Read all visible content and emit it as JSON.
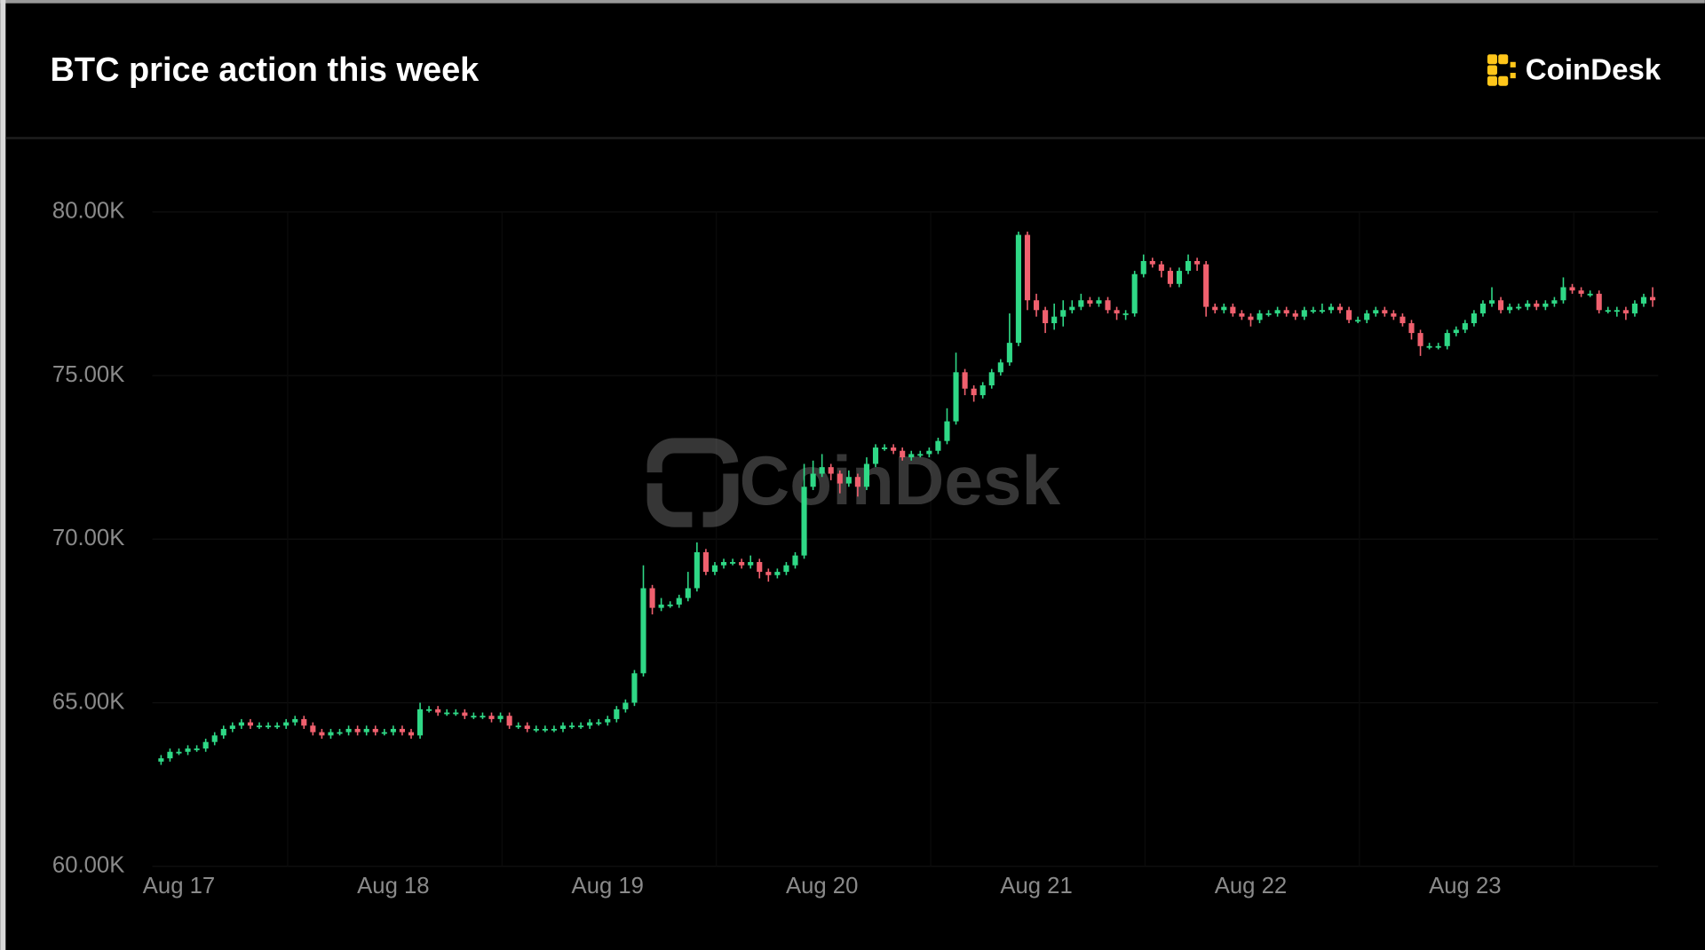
{
  "header": {
    "title": "BTC price action this week",
    "brand": "CoinDesk"
  },
  "chart_data": {
    "type": "candlestick",
    "watermark": "CoinDesk",
    "up_color": "#2fd886",
    "down_color": "#f0606e",
    "grid": true,
    "ylim": [
      60000,
      80000
    ],
    "yticks": [
      {
        "value": 60000,
        "label": "60.00K"
      },
      {
        "value": 65000,
        "label": "65.00K"
      },
      {
        "value": 70000,
        "label": "70.00K"
      },
      {
        "value": 75000,
        "label": "75.00K"
      },
      {
        "value": 80000,
        "label": "80.00K"
      }
    ],
    "categories": [
      null,
      null,
      "Aug 17",
      null,
      null,
      null,
      null,
      null,
      null,
      null,
      null,
      null,
      null,
      null,
      null,
      null,
      null,
      null,
      null,
      null,
      null,
      null,
      null,
      null,
      null,
      null,
      "Aug 18",
      null,
      null,
      null,
      null,
      null,
      null,
      null,
      null,
      null,
      null,
      null,
      null,
      null,
      null,
      null,
      null,
      null,
      null,
      null,
      null,
      null,
      null,
      null,
      "Aug 19",
      null,
      null,
      null,
      null,
      null,
      null,
      null,
      null,
      null,
      null,
      null,
      null,
      null,
      null,
      null,
      null,
      null,
      null,
      null,
      null,
      null,
      null,
      null,
      "Aug 20",
      null,
      null,
      null,
      null,
      null,
      null,
      null,
      null,
      null,
      null,
      null,
      null,
      null,
      null,
      null,
      null,
      null,
      null,
      null,
      null,
      null,
      null,
      null,
      "Aug 21",
      null,
      null,
      null,
      null,
      null,
      null,
      null,
      null,
      null,
      null,
      null,
      null,
      null,
      null,
      null,
      null,
      null,
      null,
      null,
      null,
      null,
      null,
      null,
      "Aug 22",
      null,
      null,
      null,
      null,
      null,
      null,
      null,
      null,
      null,
      null,
      null,
      null,
      null,
      null,
      null,
      null,
      null,
      null,
      null,
      null,
      null,
      null,
      null,
      "Aug 23",
      null,
      null,
      null,
      null,
      null,
      null,
      null,
      null,
      null,
      null,
      null,
      null,
      null,
      null,
      null,
      null,
      null,
      null,
      null,
      null,
      null
    ],
    "open": [
      63200,
      63300,
      63500,
      63500,
      63600,
      63600,
      63800,
      64000,
      64200,
      64300,
      64400,
      64300,
      64300,
      64300,
      64300,
      64400,
      64500,
      64300,
      64100,
      64000,
      64100,
      64100,
      64200,
      64100,
      64200,
      64100,
      64100,
      64200,
      64100,
      64000,
      64800,
      64800,
      64700,
      64700,
      64700,
      64600,
      64600,
      64600,
      64500,
      64600,
      64300,
      64300,
      64200,
      64200,
      64200,
      64200,
      64300,
      64300,
      64300,
      64400,
      64400,
      64500,
      64800,
      65000,
      65900,
      68500,
      67900,
      68000,
      68000,
      68200,
      68500,
      69600,
      69000,
      69200,
      69300,
      69300,
      69200,
      69300,
      69000,
      68900,
      69000,
      69200,
      69500,
      71600,
      72000,
      72200,
      72000,
      71700,
      71900,
      71600,
      72300,
      72800,
      72800,
      72700,
      72500,
      72600,
      72600,
      72700,
      73000,
      73600,
      75100,
      74600,
      74400,
      74700,
      75100,
      75400,
      76000,
      79300,
      77300,
      77000,
      76600,
      76800,
      77000,
      77100,
      77300,
      77200,
      77300,
      77000,
      76900,
      76900,
      78100,
      78500,
      78400,
      78200,
      77800,
      78200,
      78500,
      78400,
      77100,
      77000,
      77100,
      76900,
      76800,
      76700,
      76900,
      76900,
      77000,
      76900,
      76800,
      77000,
      77000,
      77000,
      77100,
      77000,
      76700,
      76700,
      76900,
      77000,
      76900,
      76800,
      76600,
      76300,
      75900,
      75900,
      75900,
      76300,
      76400,
      76600,
      76900,
      77200,
      77300,
      77000,
      77100,
      77100,
      77200,
      77100,
      77200,
      77300,
      77700,
      77600,
      77500,
      77500,
      77000,
      77000,
      77000,
      76900,
      77200,
      77400
    ],
    "high": [
      63400,
      63600,
      63600,
      63700,
      63700,
      63900,
      64100,
      64300,
      64400,
      64500,
      64500,
      64400,
      64400,
      64400,
      64500,
      64600,
      64600,
      64400,
      64200,
      64200,
      64200,
      64300,
      64300,
      64300,
      64300,
      64200,
      64300,
      64300,
      64200,
      65000,
      64900,
      64900,
      64800,
      64800,
      64800,
      64700,
      64700,
      64700,
      64700,
      64700,
      64400,
      64400,
      64300,
      64300,
      64300,
      64400,
      64400,
      64400,
      64500,
      64500,
      64600,
      64900,
      65100,
      66000,
      69200,
      68600,
      68200,
      68100,
      68300,
      69000,
      69900,
      69700,
      69300,
      69400,
      69400,
      69400,
      69500,
      69400,
      69100,
      69100,
      69300,
      69600,
      72300,
      72400,
      72600,
      72300,
      72100,
      72100,
      72000,
      72500,
      72900,
      72900,
      72900,
      72800,
      72700,
      72700,
      72800,
      73100,
      74000,
      75700,
      75200,
      74700,
      74800,
      75200,
      75500,
      76900,
      79400,
      79400,
      77500,
      77100,
      77200,
      77300,
      77300,
      77500,
      77400,
      77400,
      77400,
      77100,
      77000,
      78200,
      78700,
      78600,
      78500,
      78300,
      78300,
      78700,
      78600,
      78500,
      77200,
      77200,
      77200,
      77000,
      76900,
      77000,
      77000,
      77100,
      77100,
      77000,
      77100,
      77100,
      77200,
      77200,
      77200,
      77100,
      76800,
      77000,
      77100,
      77100,
      77000,
      76900,
      76700,
      76400,
      76000,
      76000,
      76400,
      76500,
      76700,
      77000,
      77300,
      77700,
      77400,
      77200,
      77200,
      77300,
      77300,
      77300,
      77400,
      78000,
      77800,
      77700,
      77600,
      77600,
      77100,
      77100,
      77100,
      77300,
      77500,
      77700
    ],
    "low": [
      63100,
      63200,
      63400,
      63400,
      63500,
      63500,
      63700,
      63900,
      64100,
      64200,
      64200,
      64200,
      64200,
      64200,
      64200,
      64300,
      64200,
      64000,
      63900,
      63900,
      64000,
      64000,
      64000,
      64000,
      64000,
      64000,
      64000,
      64000,
      63900,
      63900,
      64700,
      64600,
      64600,
      64600,
      64500,
      64500,
      64500,
      64400,
      64400,
      64200,
      64200,
      64100,
      64100,
      64100,
      64100,
      64100,
      64200,
      64200,
      64200,
      64300,
      64300,
      64400,
      64700,
      64900,
      65800,
      67700,
      67800,
      67900,
      67900,
      68100,
      68400,
      68900,
      68900,
      69100,
      69200,
      69100,
      69100,
      68800,
      68700,
      68800,
      68900,
      69100,
      69400,
      71500,
      71900,
      71800,
      71400,
      71600,
      71300,
      71500,
      72200,
      72700,
      72600,
      72400,
      72400,
      72500,
      72500,
      72600,
      72900,
      73500,
      74400,
      74200,
      74300,
      74600,
      75000,
      75300,
      75900,
      77000,
      76800,
      76300,
      76400,
      76500,
      76900,
      77000,
      77100,
      77100,
      76900,
      76700,
      76700,
      76800,
      78000,
      78300,
      78000,
      77700,
      77700,
      78100,
      78200,
      76800,
      76900,
      76900,
      76800,
      76700,
      76500,
      76600,
      76800,
      76800,
      76800,
      76700,
      76700,
      76900,
      76900,
      76900,
      76900,
      76600,
      76600,
      76600,
      76800,
      76800,
      76700,
      76500,
      76100,
      75600,
      75800,
      75800,
      75800,
      76200,
      76300,
      76500,
      76800,
      77100,
      76900,
      76900,
      77000,
      77000,
      77000,
      77000,
      77100,
      77200,
      77500,
      77400,
      77400,
      76900,
      76900,
      76800,
      76700,
      76800,
      77100,
      77100
    ],
    "close": [
      63300,
      63500,
      63500,
      63600,
      63600,
      63800,
      64000,
      64200,
      64300,
      64400,
      64300,
      64300,
      64300,
      64300,
      64400,
      64500,
      64300,
      64100,
      64000,
      64100,
      64100,
      64200,
      64100,
      64200,
      64100,
      64100,
      64200,
      64100,
      64000,
      64800,
      64800,
      64700,
      64700,
      64700,
      64600,
      64600,
      64600,
      64500,
      64600,
      64300,
      64300,
      64200,
      64200,
      64200,
      64200,
      64300,
      64300,
      64300,
      64400,
      64400,
      64500,
      64800,
      65000,
      65900,
      68500,
      67900,
      68000,
      68000,
      68200,
      68500,
      69600,
      69000,
      69200,
      69300,
      69300,
      69200,
      69300,
      69000,
      68900,
      69000,
      69200,
      69500,
      71600,
      72000,
      72200,
      72000,
      71700,
      71900,
      71600,
      72300,
      72800,
      72800,
      72700,
      72500,
      72600,
      72600,
      72700,
      73000,
      73600,
      75100,
      74600,
      74400,
      74700,
      75100,
      75400,
      76000,
      79300,
      77300,
      77000,
      76600,
      76800,
      77000,
      77100,
      77300,
      77200,
      77300,
      77000,
      76900,
      76900,
      78100,
      78500,
      78400,
      78200,
      77800,
      78200,
      78500,
      78400,
      77100,
      77000,
      77100,
      76900,
      76800,
      76700,
      76900,
      76900,
      77000,
      76900,
      76800,
      77000,
      77000,
      77000,
      77100,
      77000,
      76700,
      76700,
      76900,
      77000,
      76900,
      76800,
      76600,
      76300,
      75900,
      75900,
      75900,
      76300,
      76400,
      76600,
      76900,
      77200,
      77300,
      77000,
      77100,
      77100,
      77200,
      77100,
      77200,
      77300,
      77700,
      77600,
      77500,
      77500,
      77000,
      77000,
      77000,
      76900,
      77200,
      77400,
      77300
    ]
  }
}
